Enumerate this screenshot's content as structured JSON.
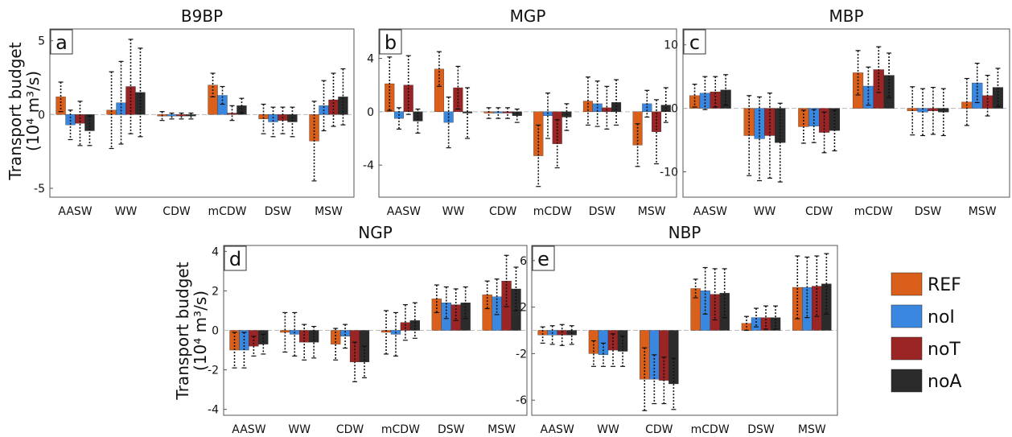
{
  "figure": {
    "ylabel_line1": "Transport budget",
    "ylabel_line2": "(10⁴ m³/s)"
  },
  "legend": {
    "placement": "right",
    "items": [
      {
        "label": "REF",
        "color": "#d95f1a"
      },
      {
        "label": "noI",
        "color": "#3a87e0"
      },
      {
        "label": "noT",
        "color": "#9b2424"
      },
      {
        "label": "noA",
        "color": "#2b2b2b"
      }
    ]
  },
  "chart_data": [
    {
      "type": "bar",
      "panel_letter": "a",
      "title": "B9BP",
      "categories": [
        "AASW",
        "WW",
        "CDW",
        "mCDW",
        "DSW",
        "MSW"
      ],
      "ylim": [
        -5.6,
        5.8
      ],
      "yticks": [
        -5,
        0,
        5
      ],
      "ytick_labels": [
        "-5",
        "0",
        "5"
      ],
      "series": [
        {
          "name": "REF",
          "values": [
            1.2,
            0.3,
            -0.1,
            2.0,
            -0.3,
            -1.8
          ],
          "err": [
            1.0,
            2.6,
            0.3,
            0.8,
            1.0,
            2.7
          ]
        },
        {
          "name": "noI",
          "values": [
            -0.7,
            0.8,
            -0.1,
            1.3,
            -0.5,
            0.6
          ],
          "err": [
            1.0,
            2.8,
            0.2,
            0.6,
            1.0,
            1.7
          ]
        },
        {
          "name": "noT",
          "values": [
            -0.6,
            1.9,
            -0.1,
            0.1,
            -0.4,
            1.0
          ],
          "err": [
            1.5,
            3.2,
            0.2,
            0.5,
            0.9,
            1.8
          ]
        },
        {
          "name": "noA",
          "values": [
            -1.1,
            1.5,
            -0.1,
            0.6,
            -0.5,
            1.2
          ],
          "err": [
            1.0,
            3.0,
            0.2,
            0.5,
            1.0,
            1.9
          ]
        }
      ]
    },
    {
      "type": "bar",
      "panel_letter": "b",
      "title": "MGP",
      "categories": [
        "AASW",
        "WW",
        "CDW",
        "mCDW",
        "DSW",
        "MSW"
      ],
      "ylim": [
        -6.4,
        6.2
      ],
      "yticks": [
        -4,
        0,
        4
      ],
      "ytick_labels": [
        "-4",
        "0",
        "4"
      ],
      "series": [
        {
          "name": "REF",
          "values": [
            2.1,
            3.2,
            -0.1,
            -3.3,
            0.8,
            -2.5
          ],
          "err": [
            2.0,
            1.3,
            0.4,
            2.3,
            1.8,
            1.6
          ]
        },
        {
          "name": "noI",
          "values": [
            -0.5,
            -0.8,
            -0.1,
            -0.3,
            0.6,
            0.6
          ],
          "err": [
            0.8,
            1.9,
            0.4,
            1.7,
            1.7,
            1.0
          ]
        },
        {
          "name": "noT",
          "values": [
            2.0,
            1.8,
            -0.1,
            -2.4,
            0.3,
            -1.5
          ],
          "err": [
            2.2,
            1.6,
            0.4,
            1.8,
            1.6,
            2.4
          ]
        },
        {
          "name": "noA",
          "values": [
            -0.7,
            -0.1,
            -0.3,
            -0.4,
            0.7,
            0.5
          ],
          "err": [
            0.9,
            1.9,
            0.5,
            1.0,
            1.7,
            1.3
          ]
        }
      ]
    },
    {
      "type": "bar",
      "panel_letter": "c",
      "title": "MBP",
      "categories": [
        "AASW",
        "WW",
        "CDW",
        "mCDW",
        "DSW",
        "MSW"
      ],
      "ylim": [
        -14,
        12.5
      ],
      "yticks": [
        -10,
        0,
        10
      ],
      "ytick_labels": [
        "-10",
        "0",
        "10"
      ],
      "series": [
        {
          "name": "REF",
          "values": [
            2.0,
            -4.3,
            -2.9,
            5.6,
            -0.4,
            1.0
          ],
          "err": [
            1.8,
            6.3,
            2.6,
            3.5,
            3.8,
            3.7
          ]
        },
        {
          "name": "noI",
          "values": [
            2.4,
            -4.8,
            -2.8,
            3.5,
            -0.6,
            4.0
          ],
          "err": [
            2.6,
            6.6,
            2.6,
            3.0,
            3.7,
            3.1
          ]
        },
        {
          "name": "noT",
          "values": [
            2.6,
            -4.3,
            -3.8,
            6.1,
            -0.4,
            2.0
          ],
          "err": [
            2.4,
            6.7,
            3.2,
            3.6,
            3.7,
            3.2
          ]
        },
        {
          "name": "noA",
          "values": [
            2.9,
            -5.4,
            -3.5,
            5.2,
            -0.6,
            3.3
          ],
          "err": [
            2.4,
            6.2,
            3.2,
            3.5,
            3.7,
            3.0
          ]
        }
      ]
    },
    {
      "type": "bar",
      "panel_letter": "d",
      "title": "NGP",
      "categories": [
        "AASW",
        "WW",
        "CDW",
        "mCDW",
        "DSW",
        "MSW"
      ],
      "ylim": [
        -4.3,
        4.3
      ],
      "yticks": [
        -4,
        -2,
        0,
        2,
        4
      ],
      "ytick_labels": [
        "-4",
        "-2",
        "0",
        "2",
        "4"
      ],
      "series": [
        {
          "name": "REF",
          "values": [
            -1.0,
            -0.1,
            -0.7,
            -0.1,
            1.6,
            1.8
          ],
          "err": [
            0.9,
            1.0,
            0.8,
            1.1,
            0.7,
            0.7
          ]
        },
        {
          "name": "noI",
          "values": [
            -1.0,
            -0.2,
            -0.3,
            -0.2,
            1.4,
            1.7
          ],
          "err": [
            0.9,
            1.1,
            0.6,
            1.1,
            0.8,
            0.9
          ]
        },
        {
          "name": "noT",
          "values": [
            -0.8,
            -0.6,
            -1.6,
            0.4,
            1.3,
            2.5
          ],
          "err": [
            0.5,
            0.9,
            1.0,
            0.9,
            0.8,
            1.3
          ]
        },
        {
          "name": "noA",
          "values": [
            -0.7,
            -0.6,
            -1.6,
            0.5,
            1.4,
            2.1
          ],
          "err": [
            0.5,
            0.8,
            0.8,
            0.9,
            0.8,
            1.1
          ]
        }
      ]
    },
    {
      "type": "bar",
      "panel_letter": "e",
      "title": "NBP",
      "categories": [
        "AASW",
        "WW",
        "CDW",
        "mCDW",
        "DSW",
        "MSW"
      ],
      "ylim": [
        -7.3,
        7.3
      ],
      "yticks": [
        -6,
        -2,
        2,
        6
      ],
      "ytick_labels": [
        "-6",
        "-2",
        "2",
        "6"
      ],
      "series": [
        {
          "name": "REF",
          "values": [
            -0.4,
            -2.0,
            -4.2,
            3.6,
            0.6,
            3.7
          ],
          "err": [
            0.7,
            1.1,
            2.7,
            0.8,
            0.6,
            2.7
          ]
        },
        {
          "name": "noI",
          "values": [
            -0.4,
            -2.1,
            -4.2,
            3.4,
            1.1,
            3.7
          ],
          "err": [
            0.8,
            1.0,
            2.1,
            2.0,
            0.8,
            2.6
          ]
        },
        {
          "name": "noT",
          "values": [
            -0.4,
            -1.7,
            -4.3,
            3.1,
            1.1,
            3.8
          ],
          "err": [
            0.9,
            1.4,
            2.0,
            2.2,
            1.0,
            2.6
          ]
        },
        {
          "name": "noA",
          "values": [
            -0.4,
            -1.8,
            -4.6,
            3.2,
            1.1,
            4.0
          ],
          "err": [
            0.8,
            1.3,
            2.2,
            2.1,
            1.0,
            2.6
          ]
        }
      ]
    }
  ]
}
